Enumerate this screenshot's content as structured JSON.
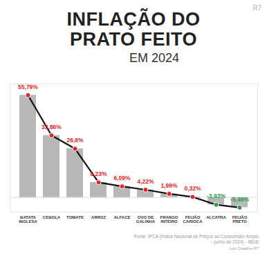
{
  "chart_data": {
    "type": "bar",
    "title": "INFLAÇÃO DO PRATO FEITO",
    "subtitle": "EM 2024",
    "categories": [
      "BATATA INGLESA",
      "CEBOLA",
      "TOMATE",
      "ARROZ",
      "ALFACE",
      "OVO DE GALINHA",
      "FRANGO INTEIRO",
      "FEIJÃO CARIOCA",
      "ALCATRA",
      "FEIJÃO PRETO"
    ],
    "values": [
      55.79,
      33.86,
      26.6,
      8.23,
      6.09,
      4.22,
      1.99,
      0.32,
      -3.93,
      -5.49
    ],
    "value_labels": [
      "55,79%",
      "33,86%",
      "26,6%",
      "8,23%",
      "6,09%",
      "4,22%",
      "1,99%",
      "0,32%",
      "-3,93%",
      "-5,49%"
    ],
    "color": "#b8b8b8",
    "colors": [
      "#e3262a",
      "#e3262a",
      "#e3262a",
      "#e3262a",
      "#e3262a",
      "#e3262a",
      "#e3262a",
      "#e3262a",
      "#2e9e4a",
      "#2e9e4a"
    ],
    "marker": "circle",
    "line_style": "solid",
    "data_labels": true,
    "tick_labels": "x",
    "grid": false,
    "ylim": [
      -8,
      62
    ],
    "annotations": [
      "Fonte: IPCA (Índice Nacional de Preços ao Consumidor Amplo - junho de 2024) - IBGE",
      "Luiz Coradine R7",
      "R7"
    ]
  }
}
